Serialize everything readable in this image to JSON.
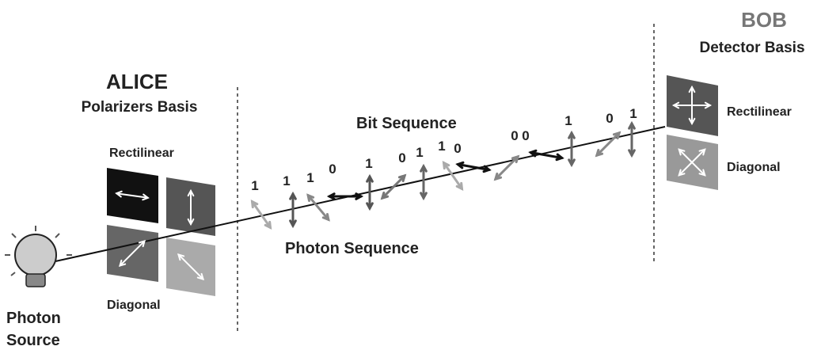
{
  "bob": {
    "title": "BOB",
    "subtitle": "Detector Basis",
    "rectilinear": "Rectilinear",
    "diagonal": "Diagonal"
  },
  "alice": {
    "title": "ALICE",
    "subtitle": "Polarizers Basis",
    "rectilinear": "Rectilinear",
    "diagonal": "Diagonal"
  },
  "bit_sequence_label": "Bit Sequence",
  "photon_sequence_label": "Photon Sequence",
  "source": {
    "line1": "Photon",
    "line2": "Source"
  },
  "bits": [
    "1",
    "1",
    "1",
    "0",
    "1",
    "0",
    "1",
    "1",
    "0",
    "0",
    "0",
    "1",
    "0",
    "1"
  ]
}
